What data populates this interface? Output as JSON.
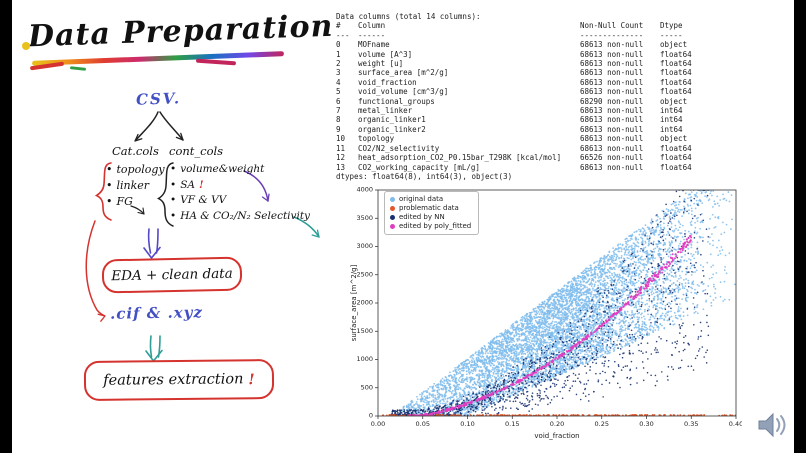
{
  "slide": {
    "title": "Data Preparation"
  },
  "flowchart": {
    "csv_label": "CSV.",
    "cat_label": "Cat.cols",
    "cont_label": "cont_cols",
    "cat_items": [
      {
        "t": "topology"
      },
      {
        "t": "linker"
      },
      {
        "t": "FG"
      }
    ],
    "cont_items": [
      {
        "t": "volume&weight"
      },
      {
        "t": "SA",
        "mark": "!"
      },
      {
        "t": "VF & VV"
      },
      {
        "t": "HA & CO₂/N₂ Selectivity"
      }
    ],
    "eda_box_label": "EDA + clean data",
    "files_label": ".cif  &  .xyz",
    "features_box_label": "features extraction",
    "features_mark": "!"
  },
  "info_panel": {
    "title": "Data columns (total 14 columns):",
    "headers": {
      "idx": "#",
      "column": "Column",
      "count": "Non-Null Count",
      "dtype": "Dtype"
    },
    "separator": {
      "idx": "---",
      "column": "------",
      "count": "--------------",
      "dtype": "-----"
    },
    "rows": [
      {
        "idx": "0",
        "column": "MOFname",
        "count": "68613 non-null",
        "dtype": "object"
      },
      {
        "idx": "1",
        "column": "volume [A^3]",
        "count": "68613 non-null",
        "dtype": "float64"
      },
      {
        "idx": "2",
        "column": "weight [u]",
        "count": "68613 non-null",
        "dtype": "float64"
      },
      {
        "idx": "3",
        "column": "surface_area [m^2/g]",
        "count": "68613 non-null",
        "dtype": "float64"
      },
      {
        "idx": "4",
        "column": "void_fraction",
        "count": "68613 non-null",
        "dtype": "float64"
      },
      {
        "idx": "5",
        "column": "void_volume [cm^3/g]",
        "count": "68613 non-null",
        "dtype": "float64"
      },
      {
        "idx": "6",
        "column": "functional_groups",
        "count": "68290 non-null",
        "dtype": "object"
      },
      {
        "idx": "7",
        "column": "metal_linker",
        "count": "68613 non-null",
        "dtype": "int64"
      },
      {
        "idx": "8",
        "column": "organic_linker1",
        "count": "68613 non-null",
        "dtype": "int64"
      },
      {
        "idx": "9",
        "column": "organic_linker2",
        "count": "68613 non-null",
        "dtype": "int64"
      },
      {
        "idx": "10",
        "column": "topology",
        "count": "68613 non-null",
        "dtype": "object"
      },
      {
        "idx": "11",
        "column": "CO2/N2_selectivity",
        "count": "68613 non-null",
        "dtype": "float64"
      },
      {
        "idx": "12",
        "column": "heat_adsorption_CO2_P0.15bar_T298K [kcal/mol]",
        "count": "66526 non-null",
        "dtype": "float64"
      },
      {
        "idx": "13",
        "column": "CO2_working_capacity [mL/g]",
        "count": "68613 non-null",
        "dtype": "float64"
      }
    ],
    "footer": "dtypes: float64(8), int64(3), object(3)"
  },
  "chart_data": {
    "type": "scatter",
    "title": "",
    "xlabel": "void_fraction",
    "ylabel": "surface_area [m^2/g]",
    "xlim": [
      0.0,
      0.4
    ],
    "ylim": [
      0,
      4000
    ],
    "xticks": [
      0.0,
      0.05,
      0.1,
      0.15,
      0.2,
      0.25,
      0.3,
      0.35,
      0.4
    ],
    "yticks": [
      0,
      500,
      1000,
      1500,
      2000,
      2500,
      3000,
      3500,
      4000
    ],
    "grid": false,
    "legend_position": "upper left",
    "legend": [
      {
        "label": "original data",
        "color": "#7fbcec"
      },
      {
        "label": "problematic data",
        "color": "#e2572b"
      },
      {
        "label": "edited by NN",
        "color": "#17306e"
      },
      {
        "label": "edited by poly_fitted",
        "color": "#e03fc0"
      }
    ],
    "series_notes": [
      "original data: dense light-blue cloud, surface_area rises with void_fraction, ~0-500 m2/g near vf 0.05 up to 2000-4000 m2/g near vf 0.40",
      "problematic data: orange-red points lying on the y=0 line for vf 0.0-0.40 (densest 0.12-0.40)",
      "edited by NN: dark navy points inside lower half of the cloud, vf 0.01-0.37",
      "edited by poly_fitted: magenta points along fitted curve y = 25000x^2 + 500x - 80, vf 0.035-0.35"
    ],
    "generator": {
      "seed": 42,
      "cloud": {
        "n": 6500,
        "x0": 0.02,
        "xspan": 0.38,
        "xpow": 1.05,
        "upper_slope": 12000,
        "upper_x0": 0.015,
        "lower_slope": 7000,
        "lower_x0": 0.1,
        "ypow": 0.95
      },
      "nn": {
        "n": 1300,
        "x0": 0.015,
        "xspan": 0.355,
        "xpow": 1.15,
        "scale_min": 0.25,
        "scale_span": 1.15,
        "noise": 220
      },
      "poly": {
        "a": 25000,
        "b": 500,
        "c": -80,
        "n": 520,
        "x0": 0.035,
        "xspan": 0.315,
        "jitter": 45
      },
      "problematic": {
        "n": 290,
        "ymax": 18
      }
    }
  }
}
